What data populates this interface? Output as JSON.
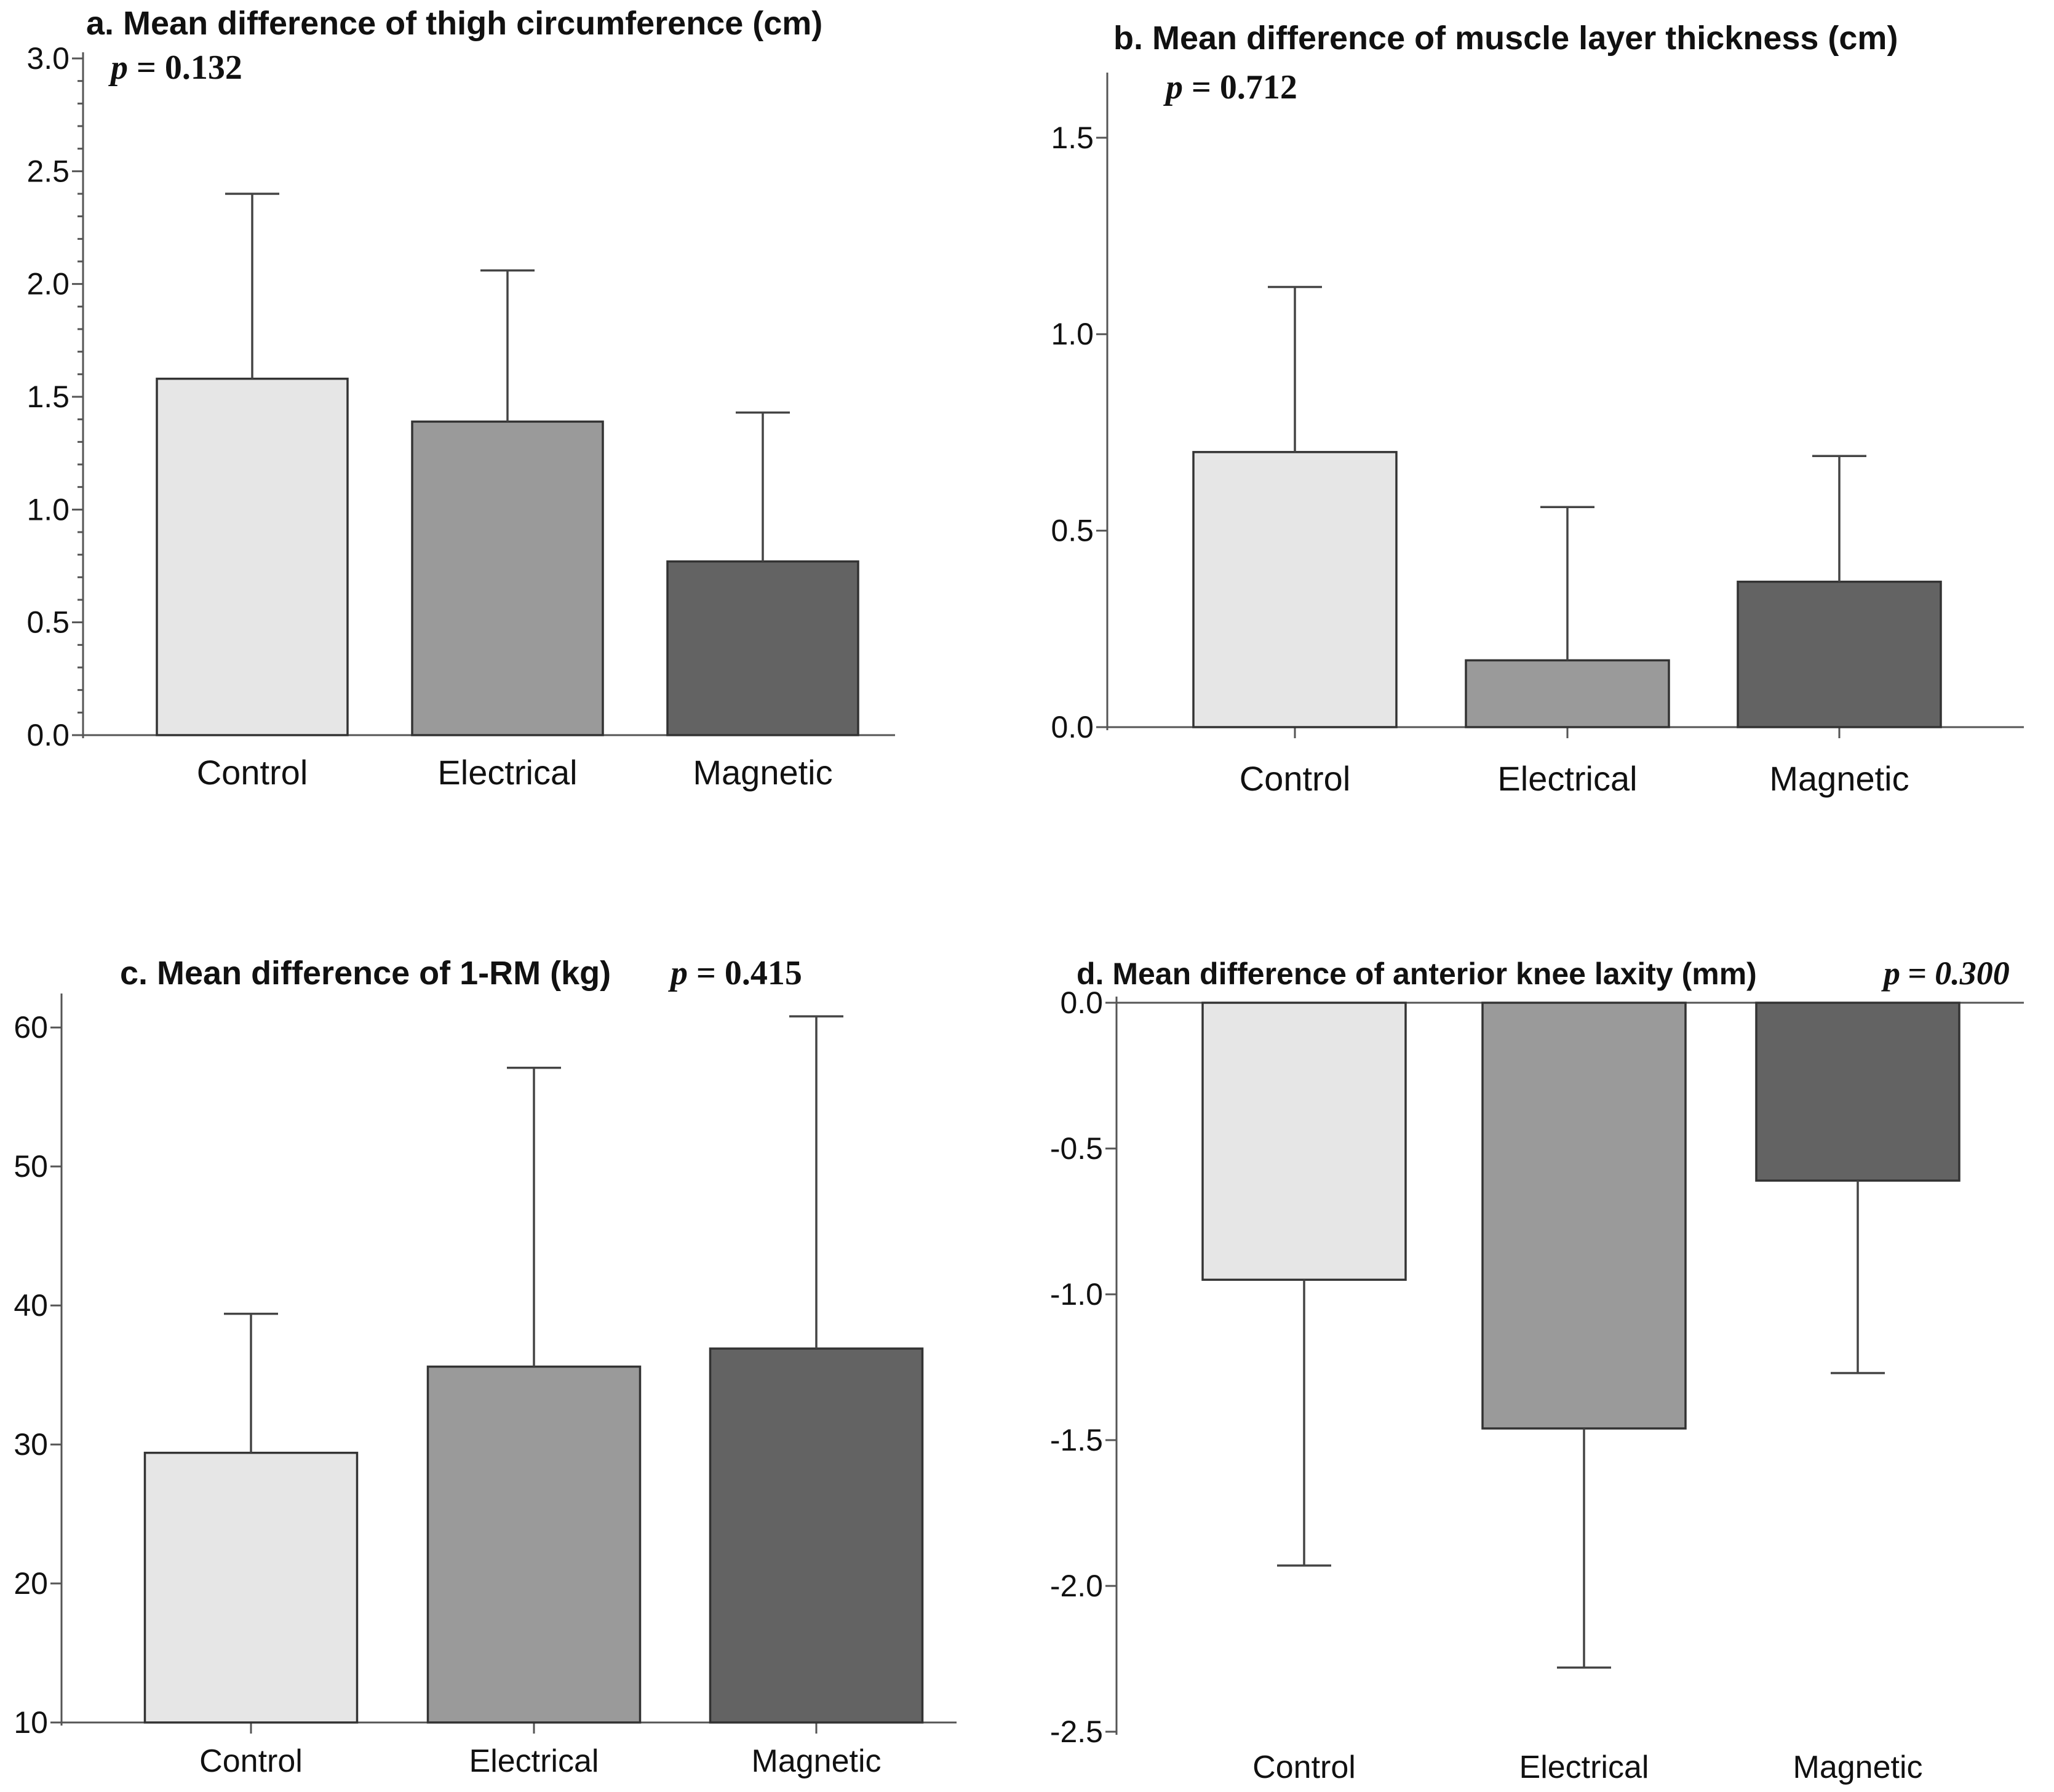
{
  "figure": {
    "panel_count": 4
  },
  "chart_data": [
    {
      "id": "a",
      "type": "bar",
      "title": "a. Mean difference of thigh circumference (cm)",
      "p_label": "p",
      "p_value": "= 0.132",
      "categories": [
        "Control",
        "Electrical",
        "Magnetic"
      ],
      "values": [
        1.58,
        1.39,
        0.77
      ],
      "error_upper": [
        2.4,
        2.06,
        1.43
      ],
      "ylim": [
        0,
        3.0
      ],
      "yticks": [
        0,
        0.5,
        1.0,
        1.5,
        2.0,
        2.5,
        3.0
      ],
      "ytick_labels": [
        "0.0",
        "0.5",
        "1.0",
        "1.5",
        "2.0",
        "2.5",
        "3.0"
      ],
      "colors": [
        "#e6e6e6",
        "#9a9a9a",
        "#636363"
      ]
    },
    {
      "id": "b",
      "type": "bar",
      "title": "b. Mean difference of muscle layer thickness (cm)",
      "p_label": "p",
      "p_value": "= 0.712",
      "categories": [
        "Control",
        "Electrical",
        "Magnetic"
      ],
      "values": [
        0.7,
        0.17,
        0.37
      ],
      "error_upper": [
        1.12,
        0.56,
        0.69
      ],
      "ylim": [
        0,
        1.65
      ],
      "yticks": [
        0,
        0.5,
        1.0,
        1.5
      ],
      "ytick_labels": [
        "0.0",
        "0.5",
        "1.0",
        "1.5"
      ],
      "colors": [
        "#e6e6e6",
        "#9a9a9a",
        "#636363"
      ]
    },
    {
      "id": "c",
      "type": "bar",
      "title": "c. Mean difference of 1-RM (kg)",
      "p_label": "p",
      "p_value": "= 0.415",
      "categories": [
        "Control",
        "Electrical",
        "Magnetic"
      ],
      "values": [
        29.4,
        35.6,
        36.9
      ],
      "error_upper": [
        39.4,
        57.1,
        60.8
      ],
      "ylim": [
        10,
        62
      ],
      "yticks": [
        10,
        20,
        30,
        40,
        50,
        60
      ],
      "ytick_labels": [
        "10",
        "20",
        "30",
        "40",
        "50",
        "60"
      ],
      "colors": [
        "#e6e6e6",
        "#9a9a9a",
        "#636363"
      ]
    },
    {
      "id": "d",
      "type": "bar",
      "title": "d. Mean difference of anterior knee laxity (mm)",
      "p_label": "p",
      "p_value": "= 0.300",
      "categories": [
        "Control",
        "Electrical",
        "Magnetic"
      ],
      "values": [
        -0.95,
        -1.46,
        -0.61
      ],
      "error_lower": [
        -1.93,
        -2.28,
        -1.27
      ],
      "ylim": [
        -2.5,
        0
      ],
      "yticks": [
        -2.5,
        -2.0,
        -1.5,
        -1.0,
        -0.5,
        0
      ],
      "ytick_labels": [
        "-2.5",
        "-2.0",
        "-1.5",
        "-1.0",
        "-0.5",
        "0.0"
      ],
      "colors": [
        "#e6e6e6",
        "#9a9a9a",
        "#636363"
      ]
    }
  ]
}
